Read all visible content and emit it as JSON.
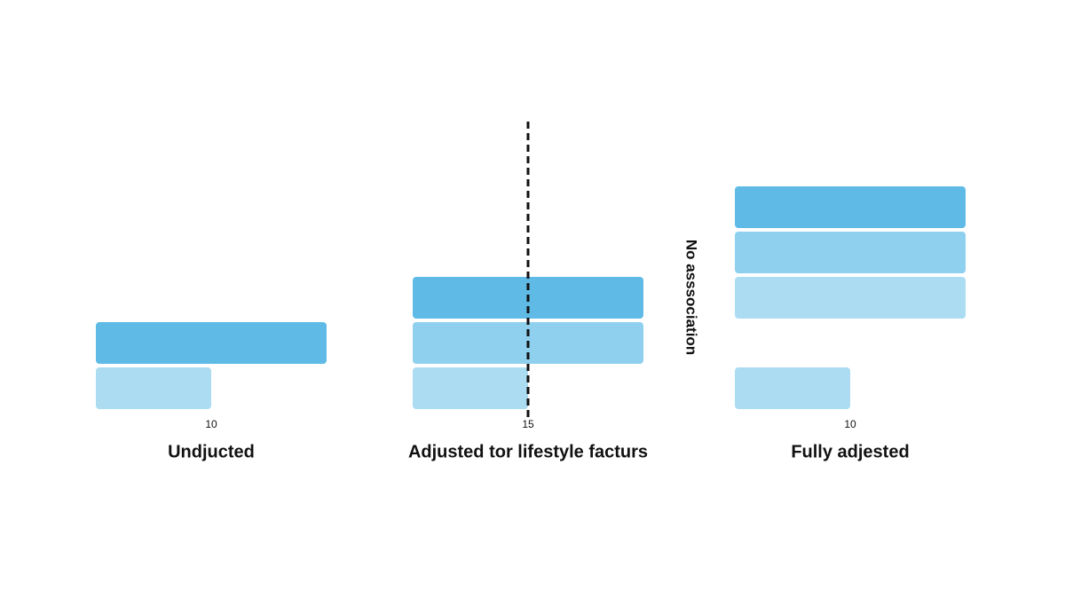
{
  "chart_data": [
    {
      "type": "bar",
      "orientation": "horizontal",
      "title": "Undjucted",
      "categories": [
        null,
        null
      ],
      "values": [
        20,
        10
      ],
      "colors": [
        "#5fbbe6",
        "#abdcf2"
      ],
      "xlim": [
        0,
        20
      ],
      "xticks": [
        10
      ]
    },
    {
      "type": "bar",
      "orientation": "horizontal",
      "title": "Adjusted tor lifestyle facturs",
      "categories": [
        null,
        null,
        null
      ],
      "values": [
        30,
        30,
        15
      ],
      "colors": [
        "#5fbbe6",
        "#8fd0ef",
        "#abdcf2"
      ],
      "xlim": [
        0,
        30
      ],
      "xticks": [
        15
      ],
      "reference_x": 15,
      "annotation": "No asssociation"
    },
    {
      "type": "bar",
      "orientation": "horizontal",
      "title": "Fully adjested",
      "categories": [
        null,
        null,
        null,
        null,
        null
      ],
      "values": [
        20,
        20,
        20,
        null,
        10
      ],
      "colors": [
        "#5fbbe6",
        "#8fd0ef",
        "#abdcf2",
        "#abdcf2",
        "#abdcf2"
      ],
      "xlim": [
        0,
        20
      ],
      "xticks": [
        10
      ]
    }
  ]
}
